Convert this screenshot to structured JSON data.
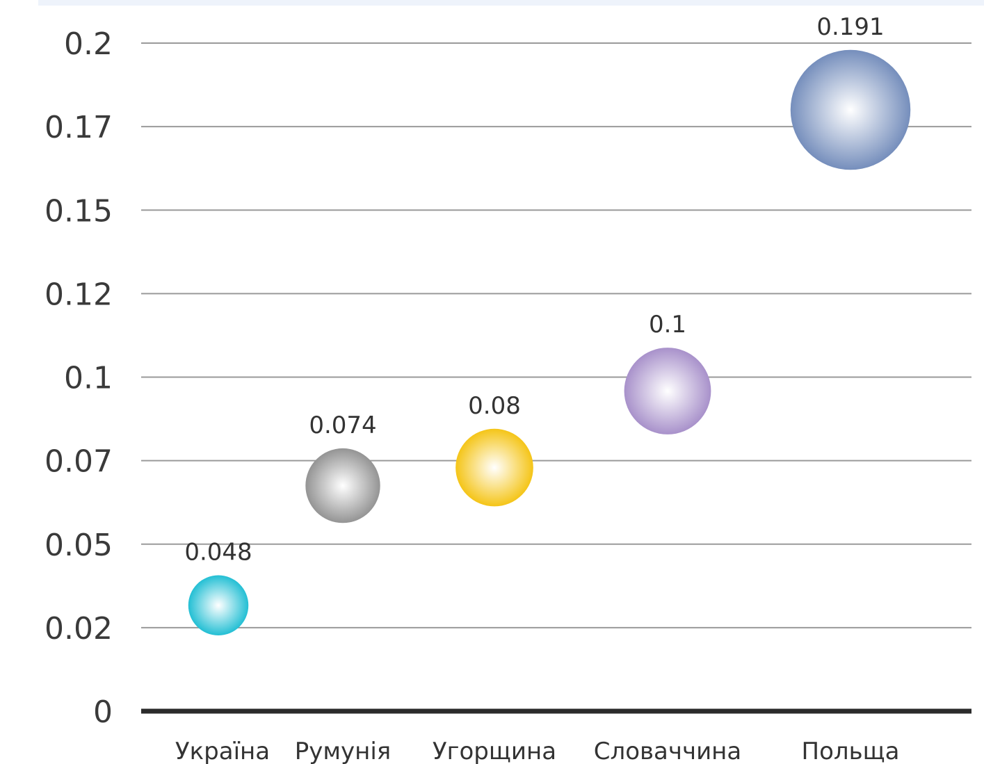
{
  "chart_data": {
    "type": "scatter",
    "categories": [
      "Україна",
      "Румунія",
      "Угорщина",
      "Словаччина",
      "Польща"
    ],
    "values": [
      0.048,
      0.074,
      0.08,
      0.1,
      0.191
    ],
    "data_labels": [
      "0.048",
      "0.074",
      "0.08",
      "0.1",
      "0.191"
    ],
    "y_ticks": [
      {
        "value": 0,
        "label": "0"
      },
      {
        "value": 0.02,
        "label": "0.02"
      },
      {
        "value": 0.05,
        "label": "0.05"
      },
      {
        "value": 0.07,
        "label": "0.07"
      },
      {
        "value": 0.1,
        "label": "0.1"
      },
      {
        "value": 0.12,
        "label": "0.12"
      },
      {
        "value": 0.15,
        "label": "0.15"
      },
      {
        "value": 0.17,
        "label": "0.17"
      },
      {
        "value": 0.2,
        "label": "0.2"
      }
    ],
    "ylim": [
      0,
      0.2
    ],
    "grid": true,
    "colors": [
      "#19bcd2",
      "#8f8f8f",
      "#f4c20d",
      "#a48cc8",
      "#6f89b9"
    ],
    "title": "",
    "xlabel": "",
    "ylabel": ""
  }
}
